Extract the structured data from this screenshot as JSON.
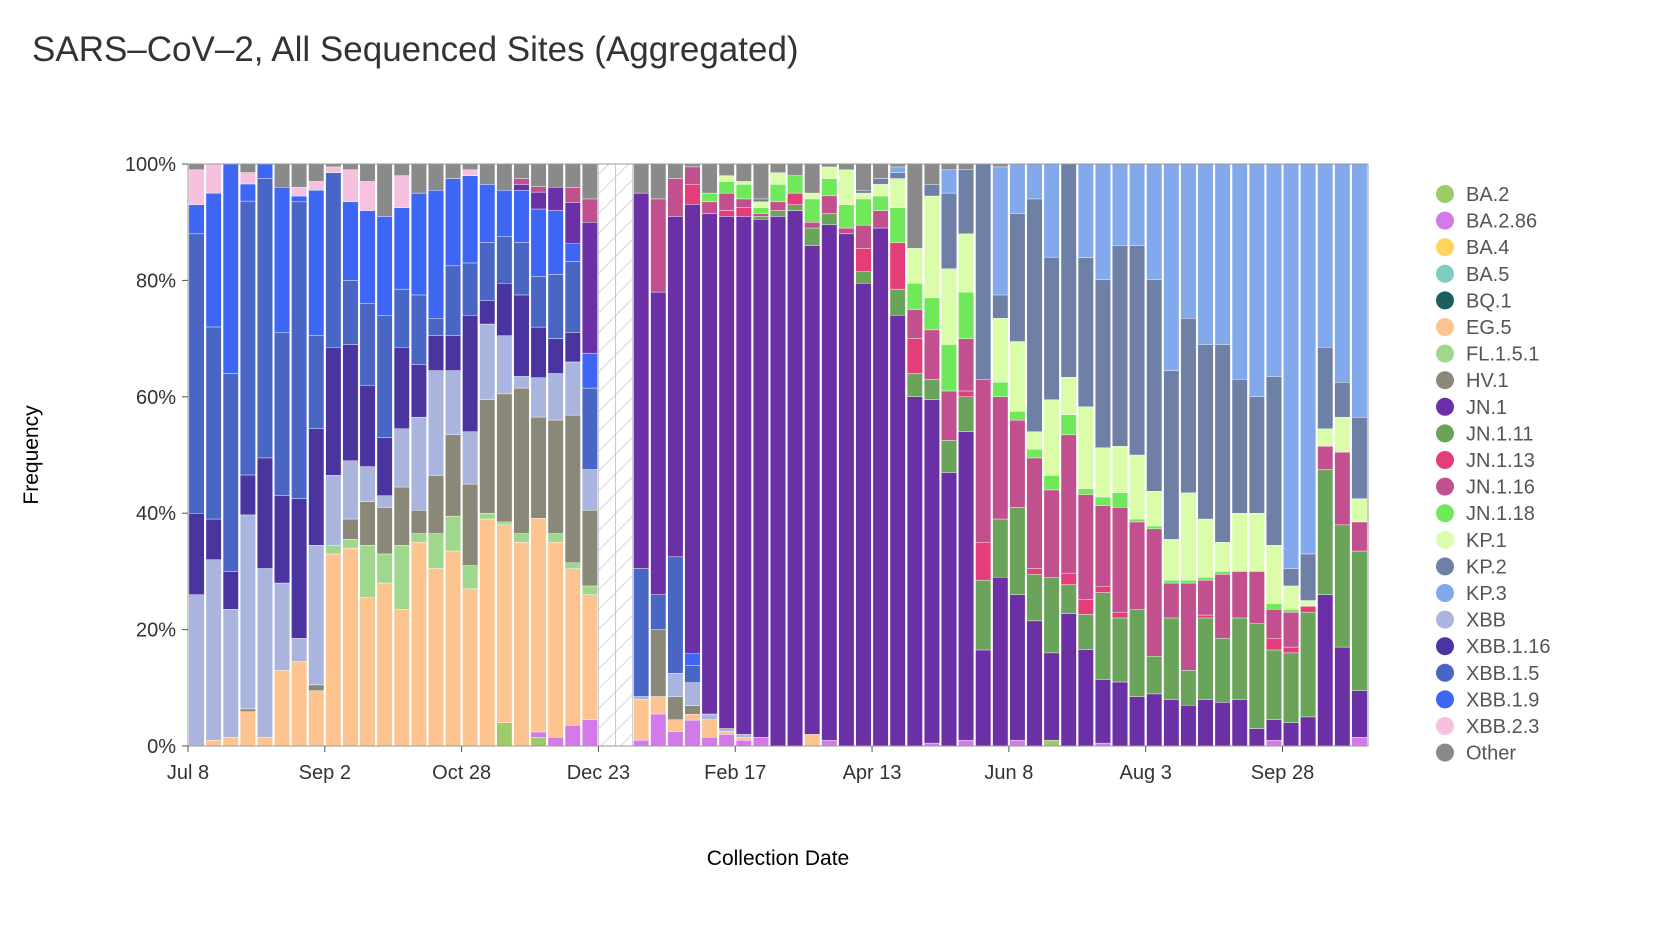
{
  "chart_data": {
    "type": "bar",
    "stacked": true,
    "title": "SARS–CoV–2, All Sequenced Sites (Aggregated)",
    "xlabel": "Collection Date",
    "ylabel": "Frequency",
    "ylim": [
      0,
      100
    ],
    "yticks": [
      0,
      20,
      40,
      60,
      80,
      100
    ],
    "ytick_labels": [
      "0%",
      "20%",
      "40%",
      "60%",
      "80%",
      "100%"
    ],
    "x_tick_labels": [
      {
        "label": "Jul 8",
        "week": 0
      },
      {
        "label": "Sep 2",
        "week": 8
      },
      {
        "label": "Oct 28",
        "week": 16
      },
      {
        "label": "Dec 23",
        "week": 24
      },
      {
        "label": "Feb 17",
        "week": 32
      },
      {
        "label": "Apr 13",
        "week": 40
      },
      {
        "label": "Jun 8",
        "week": 48
      },
      {
        "label": "Aug 3",
        "week": 56
      },
      {
        "label": "Sep 28",
        "week": 64
      }
    ],
    "gap_weeks": [
      24,
      25
    ],
    "first_week_offset": -0.5,
    "legend": [
      "BA.2",
      "BA.2.86",
      "BA.4",
      "BA.5",
      "BQ.1",
      "EG.5",
      "FL.1.5.1",
      "HV.1",
      "JN.1",
      "JN.1.11",
      "JN.1.13",
      "JN.1.16",
      "JN.1.18",
      "KP.1",
      "KP.2",
      "KP.3",
      "XBB",
      "XBB.1.16",
      "XBB.1.5",
      "XBB.1.9",
      "XBB.2.3",
      "Other"
    ],
    "colors": {
      "BA.2": "#9ecb6a",
      "BA.2.86": "#d47ae8",
      "BA.4": "#ffd45c",
      "BA.5": "#7ecbc1",
      "BQ.1": "#1b5e5e",
      "EG.5": "#fdc48f",
      "FL.1.5.1": "#9fd88c",
      "HV.1": "#8a8878",
      "JN.1": "#6b30a6",
      "JN.1.11": "#6aa35a",
      "JN.1.13": "#e33e7a",
      "JN.1.16": "#c2508f",
      "JN.1.18": "#6fe85a",
      "KP.1": "#dbfca8",
      "KP.2": "#6e80a6",
      "KP.3": "#82a9ec",
      "XBB": "#aab5df",
      "XBB.1.16": "#4a35a0",
      "XBB.1.5": "#4a66c4",
      "XBB.1.9": "#3d66f5",
      "XBB.2.3": "#f6c0df",
      "Other": "#8a8a8a"
    },
    "stack_order": [
      "BA.2",
      "BA.2.86",
      "EG.5",
      "FL.1.5.1",
      "HV.1",
      "XBB",
      "XBB.1.16",
      "XBB.1.5",
      "XBB.1.9",
      "XBB.2.3",
      "JN.1",
      "JN.1.11",
      "JN.1.13",
      "JN.1.16",
      "JN.1.18",
      "KP.1",
      "KP.2",
      "KP.3",
      "Other"
    ],
    "weeks": [
      {
        "XBB": 26,
        "XBB.1.16": 14,
        "XBB.1.5": 48,
        "XBB.1.9": 5,
        "XBB.2.3": 6,
        "Other": 1
      },
      {
        "EG.5": 1,
        "XBB": 31,
        "XBB.1.16": 7,
        "XBB.1.5": 33,
        "XBB.1.9": 23,
        "XBB.2.3": 5
      },
      {
        "EG.5": 1.5,
        "XBB": 22,
        "XBB.1.16": 6.5,
        "XBB.1.5": 34,
        "XBB.1.9": 36
      },
      {
        "EG.5": 6,
        "HV.1": 0.5,
        "XBB": 34,
        "XBB.1.16": 7,
        "XBB.1.5": 48,
        "XBB.1.9": 3,
        "XBB.2.3": 2,
        "Other": 1.5
      },
      {
        "EG.5": 1.5,
        "XBB": 29,
        "XBB.1.16": 19,
        "XBB.1.5": 48,
        "XBB.1.9": 2.5
      },
      {
        "EG.5": 13,
        "XBB": 15,
        "XBB.1.16": 15,
        "XBB.1.5": 28,
        "XBB.1.9": 25,
        "Other": 4
      },
      {
        "EG.5": 14.5,
        "XBB": 4,
        "XBB.1.16": 24,
        "XBB.1.5": 51,
        "XBB.1.9": 1,
        "XBB.2.3": 1.5,
        "Other": 4
      },
      {
        "EG.5": 9.5,
        "HV.1": 1,
        "XBB": 24,
        "XBB.1.16": 20,
        "XBB.1.5": 16,
        "XBB.1.9": 25,
        "XBB.2.3": 1.5,
        "Other": 3
      },
      {
        "EG.5": 33,
        "FL.1.5.1": 1.5,
        "XBB": 12,
        "XBB.1.16": 22,
        "XBB.1.5": 30,
        "XBB.2.3": 1,
        "Other": 0.5
      },
      {
        "EG.5": 34,
        "FL.1.5.1": 1.5,
        "HV.1": 3.5,
        "XBB": 10,
        "XBB.1.16": 20,
        "XBB.1.5": 11,
        "XBB.1.9": 13.5,
        "XBB.2.3": 5.5,
        "Other": 1
      },
      {
        "EG.5": 25.5,
        "FL.1.5.1": 9,
        "HV.1": 7.5,
        "XBB": 6,
        "XBB.1.16": 14,
        "XBB.1.5": 14,
        "XBB.1.9": 16,
        "XBB.2.3": 5,
        "Other": 3
      },
      {
        "EG.5": 28,
        "FL.1.5.1": 5,
        "HV.1": 8,
        "XBB": 2,
        "XBB.1.16": 10,
        "XBB.1.5": 21,
        "XBB.1.9": 17,
        "Other": 9
      },
      {
        "EG.5": 23.5,
        "FL.1.5.1": 11,
        "HV.1": 10,
        "XBB": 10,
        "XBB.1.16": 14,
        "XBB.1.5": 10,
        "XBB.1.9": 14,
        "XBB.2.3": 5.5,
        "Other": 2
      },
      {
        "EG.5": 35,
        "FL.1.5.1": 1.5,
        "HV.1": 4,
        "XBB": 16,
        "XBB.1.16": 9,
        "XBB.1.5": 12,
        "XBB.1.9": 17.5,
        "Other": 5
      },
      {
        "EG.5": 30.5,
        "FL.1.5.1": 6,
        "HV.1": 10,
        "XBB": 18,
        "XBB.1.16": 6,
        "XBB.1.5": 3,
        "XBB.1.9": 22,
        "Other": 4.5
      },
      {
        "EG.5": 33.5,
        "FL.1.5.1": 6,
        "HV.1": 14,
        "XBB": 11,
        "XBB.1.16": 6,
        "XBB.1.5": 12,
        "XBB.1.9": 15,
        "Other": 2.5
      },
      {
        "EG.5": 27,
        "FL.1.5.1": 4,
        "HV.1": 14,
        "XBB": 9,
        "XBB.1.16": 20,
        "XBB.1.5": 9,
        "XBB.1.9": 15,
        "XBB.2.3": 1,
        "Other": 1
      },
      {
        "EG.5": 39,
        "FL.1.5.1": 1,
        "HV.1": 19.5,
        "XBB": 13,
        "XBB.1.16": 4,
        "XBB.1.5": 10,
        "XBB.1.9": 10,
        "Other": 3.5
      },
      {
        "BA.2": 4,
        "EG.5": 34,
        "FL.1.5.1": 0.5,
        "HV.1": 22,
        "XBB": 10,
        "XBB.1.16": 9,
        "XBB.1.5": 8,
        "XBB.1.9": 8,
        "Other": 4.5
      },
      {
        "EG.5": 35,
        "FL.1.5.1": 1.5,
        "HV.1": 25,
        "JN.1": 1,
        "JN.1.16": 1,
        "XBB": 2,
        "XBB.1.16": 14,
        "XBB.1.5": 9,
        "XBB.1.9": 9,
        "Other": 2.5
      },
      {
        "BA.2": 1.5,
        "BA.2.86": 1,
        "EG.5": 38,
        "HV.1": 18,
        "JN.1": 3,
        "JN.1.16": 1,
        "XBB": 7,
        "XBB.1.16": 9,
        "XBB.1.5": 9,
        "XBB.1.9": 12,
        "Other": 4
      },
      {
        "BA.2.86": 1.5,
        "EG.5": 33.5,
        "FL.1.5.1": 1.5,
        "HV.1": 19.5,
        "JN.1": 4,
        "XBB": 8,
        "XBB.1.16": 6,
        "XBB.1.5": 11,
        "XBB.1.9": 11,
        "Other": 4
      },
      {
        "BA.2.86": 3.5,
        "EG.5": 26.5,
        "FL.1.5.1": 1,
        "HV.1": 25,
        "JN.1": 7,
        "JN.1.16": 2.5,
        "XBB": 9,
        "XBB.1.16": 5,
        "XBB.1.5": 12,
        "XBB.1.9": 3,
        "Other": 4
      },
      {
        "BA.2.86": 4.5,
        "EG.5": 21.5,
        "FL.1.5.1": 1.5,
        "HV.1": 13,
        "JN.1": 22.5,
        "JN.1.16": 4,
        "XBB": 7,
        "XBB.1.5": 14,
        "XBB.1.9": 6,
        "Other": 6
      },
      null,
      null,
      {
        "BA.2.86": 1,
        "EG.5": 7,
        "JN.1": 64.5,
        "XBB": 0.5,
        "XBB.1.5": 22,
        "Other": 5
      },
      {
        "BA.2.86": 5.5,
        "EG.5": 3,
        "HV.1": 11.5,
        "JN.1": 52,
        "JN.1.16": 16,
        "XBB.1.5": 6,
        "Other": 6
      },
      {
        "BA.2.86": 2.5,
        "EG.5": 2,
        "HV.1": 4,
        "JN.1": 58.5,
        "JN.1.16": 6.5,
        "XBB": 4,
        "XBB.1.5": 20,
        "Other": 2.5
      },
      {
        "BA.2.86": 4.5,
        "EG.5": 1,
        "HV.1": 1.5,
        "JN.1": 78,
        "JN.1.13": 3.5,
        "JN.1.16": 3,
        "XBB": 4,
        "XBB.1.5": 3,
        "XBB.1.9": 2,
        "Other": 0.5
      },
      {
        "BA.2.86": 1.5,
        "EG.5": 3,
        "JN.1": 86,
        "JN.1.16": 2,
        "JN.1.18": 1.5,
        "XBB": 1,
        "Other": 5
      },
      {
        "BA.2.86": 2,
        "EG.5": 0.5,
        "JN.1": 88,
        "JN.1.13": 1,
        "JN.1.16": 3,
        "JN.1.18": 2,
        "KP.1": 1,
        "XBB": 0.5,
        "Other": 2
      },
      {
        "BA.2.86": 1,
        "EG.5": 0.5,
        "JN.1": 89,
        "JN.1.13": 1.5,
        "JN.1.16": 1.5,
        "JN.1.18": 2.5,
        "KP.1": 0.5,
        "XBB": 0.5,
        "Other": 3
      },
      {
        "BA.2.86": 1.5,
        "JN.1": 89,
        "JN.1.11": 0.5,
        "JN.1.16": 0.5,
        "JN.1.18": 1,
        "KP.1": 1,
        "KP.2": 0.5,
        "Other": 6
      },
      {
        "JN.1": 91,
        "JN.1.11": 1,
        "JN.1.16": 1.5,
        "JN.1.18": 3,
        "KP.1": 2,
        "Other": 1.5
      },
      {
        "JN.1": 92,
        "JN.1.11": 1,
        "JN.1.13": 2,
        "JN.1.18": 3,
        "Other": 2
      },
      {
        "EG.5": 2,
        "JN.1": 84,
        "JN.1.11": 3,
        "JN.1.16": 1,
        "JN.1.18": 4,
        "KP.1": 1,
        "Other": 5
      },
      {
        "BA.2.86": 1,
        "JN.1": 89,
        "JN.1.11": 2,
        "JN.1.16": 3,
        "JN.1.18": 3,
        "KP.1": 2,
        "Other": 0.5
      },
      {
        "JN.1": 88,
        "JN.1.16": 1,
        "JN.1.18": 4,
        "KP.1": 6,
        "Other": 1
      },
      {
        "JN.1": 79.5,
        "JN.1.11": 2,
        "JN.1.13": 4,
        "JN.1.16": 4,
        "JN.1.18": 4.5,
        "KP.1": 1,
        "KP.2": 0.5,
        "Other": 4.5
      },
      {
        "JN.1": 89,
        "JN.1.16": 3,
        "JN.1.18": 2.5,
        "KP.1": 2,
        "KP.2": 1,
        "Other": 2.5
      },
      {
        "JN.1": 74,
        "JN.1.11": 4.5,
        "JN.1.13": 8,
        "JN.1.18": 6,
        "KP.1": 5,
        "KP.2": 1,
        "KP.3": 1,
        "Other": 0.5
      },
      {
        "JN.1": 60,
        "JN.1.11": 4,
        "JN.1.13": 6,
        "JN.1.16": 5,
        "JN.1.18": 4.5,
        "KP.1": 6,
        "KP.2": 0,
        "Other": 14.5
      },
      {
        "BA.2.86": 0.5,
        "JN.1": 59,
        "JN.1.11": 3.5,
        "JN.1.16": 8.5,
        "JN.1.18": 5.5,
        "KP.1": 17.5,
        "KP.2": 2,
        "Other": 3.5
      },
      {
        "JN.1": 47,
        "JN.1.11": 5.5,
        "JN.1.16": 8.5,
        "JN.1.18": 8,
        "KP.1": 13,
        "KP.2": 13,
        "KP.3": 4,
        "Other": 1
      },
      {
        "BA.2.86": 1,
        "JN.1": 53,
        "JN.1.11": 6,
        "JN.1.13": 1,
        "JN.1.16": 9,
        "JN.1.18": 8,
        "KP.1": 10,
        "KP.2": 11,
        "Other": 1
      },
      {
        "JN.1": 16.5,
        "JN.1.11": 12,
        "JN.1.13": 6.5,
        "JN.1.16": 28,
        "JN.1.18": 0,
        "KP.1": 0,
        "KP.2": 37,
        "KP.3": 0
      },
      {
        "JN.1": 29,
        "JN.1.11": 10,
        "JN.1.16": 21,
        "JN.1.18": 2.5,
        "KP.1": 11,
        "KP.2": 4,
        "KP.3": 22,
        "Other": 0.5
      },
      {
        "BA.2.86": 1,
        "JN.1": 25,
        "JN.1.11": 15,
        "JN.1.16": 15,
        "JN.1.18": 1.5,
        "KP.1": 12,
        "KP.2": 22,
        "KP.3": 8.5
      },
      {
        "JN.1": 21.5,
        "JN.1.11": 8,
        "JN.1.13": 1,
        "JN.1.16": 19,
        "JN.1.18": 1.5,
        "KP.1": 3,
        "KP.2": 40,
        "KP.3": 6
      },
      {
        "BA.2": 1,
        "JN.1": 15,
        "JN.1.11": 13,
        "JN.1.16": 15,
        "JN.1.18": 2.5,
        "KP.1": 13,
        "KP.2": 24.5,
        "KP.3": 16
      },
      {
        "JN.1": 23,
        "JN.1.11": 5,
        "JN.1.13": 2,
        "JN.1.16": 24,
        "JN.1.18": 3.5,
        "KP.1": 6.5,
        "KP.2": 37,
        "KP.3": 0
      },
      {
        "JN.1": 16.5,
        "JN.1.11": 6,
        "JN.1.13": 2.5,
        "JN.1.16": 18,
        "JN.1.18": 1,
        "KP.1": 14,
        "KP.2": 25.5,
        "KP.3": 16
      },
      {
        "BA.2.86": 0.5,
        "JN.1": 11,
        "JN.1.11": 15,
        "JN.1.13": 1,
        "JN.1.16": 14,
        "JN.1.18": 1.5,
        "KP.1": 8.5,
        "KP.2": 29,
        "KP.3": 20
      },
      {
        "JN.1": 11,
        "JN.1.11": 11,
        "JN.1.13": 1,
        "JN.1.16": 18,
        "JN.1.18": 2.5,
        "KP.1": 8,
        "KP.2": 34.5,
        "KP.3": 14
      },
      {
        "JN.1": 8.5,
        "JN.1.11": 15,
        "JN.1.16": 15,
        "JN.1.18": 0.5,
        "KP.1": 11,
        "KP.2": 36,
        "KP.3": 14
      },
      {
        "JN.1": 9,
        "JN.1.11": 6.5,
        "JN.1.16": 22,
        "JN.1.18": 0.5,
        "KP.1": 6,
        "KP.2": 36.5,
        "KP.3": 20
      },
      {
        "JN.1": 8,
        "JN.1.11": 14,
        "JN.1.16": 6,
        "JN.1.18": 0.5,
        "KP.1": 7,
        "KP.2": 29,
        "KP.3": 35.5
      },
      {
        "JN.1": 7,
        "JN.1.11": 6,
        "JN.1.16": 15,
        "JN.1.18": 0.5,
        "KP.1": 15,
        "KP.2": 30,
        "KP.3": 26.5
      },
      {
        "JN.1": 8,
        "JN.1.11": 14,
        "JN.1.13": 0.5,
        "JN.1.16": 6,
        "JN.1.18": 0.5,
        "KP.1": 10,
        "KP.2": 30,
        "KP.3": 31
      },
      {
        "JN.1": 7.5,
        "JN.1.11": 11,
        "JN.1.16": 11,
        "JN.1.18": 0.5,
        "KP.1": 5,
        "KP.2": 34,
        "KP.3": 31
      },
      {
        "JN.1": 8,
        "JN.1.11": 14,
        "JN.1.16": 8,
        "JN.1.18": 0,
        "KP.1": 10,
        "KP.2": 23,
        "KP.3": 37
      },
      {
        "JN.1": 3,
        "JN.1.11": 18,
        "JN.1.16": 9,
        "KP.1": 10,
        "KP.2": 20,
        "KP.3": 40
      },
      {
        "BA.2.86": 1,
        "JN.1": 3.5,
        "JN.1.11": 12,
        "JN.1.13": 2,
        "JN.1.16": 5,
        "JN.1.18": 1,
        "KP.1": 10,
        "KP.2": 29,
        "KP.3": 36.5
      },
      {
        "JN.1": 4,
        "JN.1.11": 12,
        "JN.1.13": 1,
        "JN.1.16": 6,
        "JN.1.18": 0.5,
        "KP.1": 4,
        "KP.2": 3,
        "KP.3": 69.5
      },
      {
        "JN.1": 5,
        "JN.1.11": 18,
        "JN.1.13": 1,
        "JN.1.16": 0,
        "KP.1": 1,
        "KP.2": 8,
        "KP.3": 67
      },
      {
        "JN.1": 26,
        "JN.1.11": 21.5,
        "JN.1.16": 4,
        "KP.1": 3,
        "KP.2": 14,
        "KP.3": 31.5
      },
      {
        "JN.1": 17,
        "JN.1.11": 21,
        "JN.1.16": 12.5,
        "KP.1": 6,
        "KP.2": 6,
        "KP.3": 37.5
      },
      {
        "BA.2.86": 1.5,
        "JN.1": 8,
        "JN.1.11": 24,
        "JN.1.16": 5,
        "KP.1": 4,
        "KP.2": 14,
        "KP.3": 43.5
      }
    ]
  }
}
